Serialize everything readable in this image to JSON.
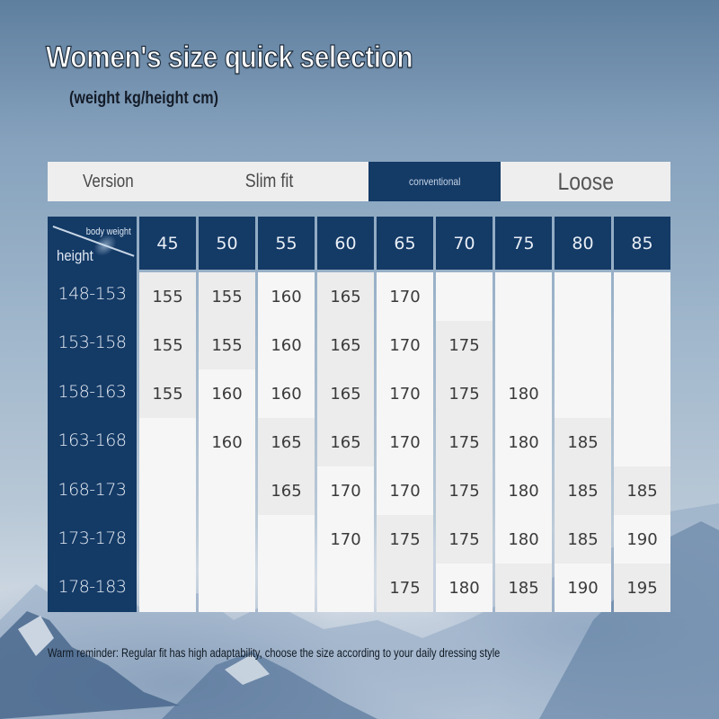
{
  "header": {
    "title": "Women's size quick selection",
    "subtitle": "(weight kg/height cm)"
  },
  "version_bar": {
    "version_label": "Version",
    "slim_label": "Slim fit",
    "conventional_label": "conventional",
    "loose_label": "Loose",
    "highlight_color": "#143a66"
  },
  "table": {
    "corner": {
      "top_label": "body weight",
      "bottom_label": "height"
    },
    "weights": [
      "45",
      "50",
      "55",
      "60",
      "65",
      "70",
      "75",
      "80",
      "85"
    ],
    "heights": [
      "148-153",
      "153-158",
      "158-163",
      "163-168",
      "168-173",
      "173-178",
      "178-183"
    ],
    "rows": [
      [
        "155",
        "155",
        "160",
        "165",
        "170",
        "",
        "",
        "",
        ""
      ],
      [
        "155",
        "155",
        "160",
        "165",
        "170",
        "175",
        "",
        "",
        ""
      ],
      [
        "155",
        "160",
        "160",
        "165",
        "170",
        "175",
        "180",
        "",
        ""
      ],
      [
        "",
        "160",
        "165",
        "165",
        "170",
        "175",
        "180",
        "185",
        ""
      ],
      [
        "",
        "",
        "165",
        "170",
        "170",
        "175",
        "180",
        "185",
        "185"
      ],
      [
        "",
        "",
        "",
        "170",
        "175",
        "175",
        "180",
        "185",
        "190"
      ],
      [
        "",
        "",
        "",
        "",
        "175",
        "180",
        "185",
        "190",
        "195"
      ]
    ],
    "header_color": "#143a66"
  },
  "footer": {
    "reminder": "Warm reminder: Regular fit has high adaptability, choose the size according to your daily dressing style"
  }
}
